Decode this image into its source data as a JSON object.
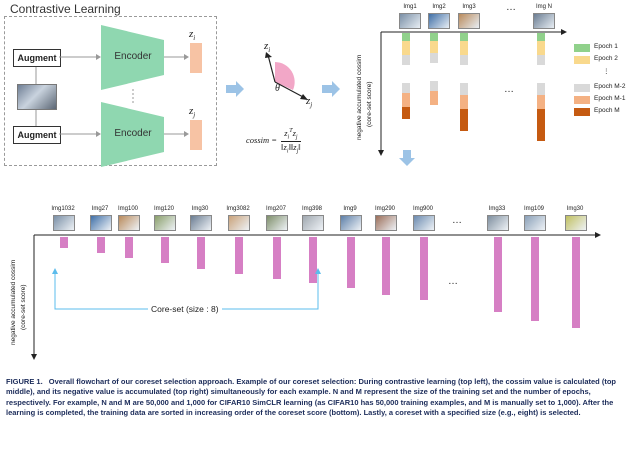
{
  "figure_title": "Contrastive Learning",
  "augment_label": "Augment",
  "encoder_label": "Encoder",
  "z_i": "z",
  "z_i_sub": "i",
  "z_j": "z",
  "z_j_sub": "j",
  "theta": "θ",
  "cossim_label": "cossim =",
  "cossim_num": "z",
  "cossim_den": "‖z",
  "top_right": {
    "images": [
      "Img1",
      "Img2",
      "Img3",
      "…",
      "Img N"
    ],
    "axis_label": "negative accumulated cossim",
    "axis_sub": "(core-set score)",
    "legend": [
      {
        "label": "Epoch 1",
        "color": "#90d18b"
      },
      {
        "label": "Epoch 2",
        "color": "#f9d98d"
      },
      {
        "label": "⋮",
        "color": ""
      },
      {
        "label": "Epoch M-2",
        "color": "#d9d9d9"
      },
      {
        "label": "Epoch M-1",
        "color": "#f4b183"
      },
      {
        "label": "Epoch M",
        "color": "#c55a11"
      }
    ],
    "dots": "…"
  },
  "bottom": {
    "images": [
      "Img1032",
      "Img27",
      "Img100",
      "Img120",
      "Img30",
      "Img3082",
      "Img207",
      "Img398",
      "Img9",
      "Img290",
      "Img900",
      "…",
      "Img33",
      "Img109",
      "Img30"
    ],
    "bar_values": [
      0.06,
      0.09,
      0.12,
      0.15,
      0.18,
      0.21,
      0.24,
      0.26,
      0.29,
      0.33,
      0.36,
      null,
      0.43,
      0.48,
      0.52
    ],
    "axis_label": "negative accumulated cossim",
    "axis_sub": "(core-set score)",
    "coreset_label": "Core-set (size : 8)",
    "dots": "…",
    "bar_color": "#d67fc4"
  },
  "caption": {
    "fig": "FIGURE 1.",
    "text": "Overall flowchart of our coreset selection approach. Example of our coreset selection: During contrastive learning (top left), the cossim value is calculated (top middle), and its negative value is accumulated (top right) simultaneously for each example. N and M represent the size of the training set and the number of epochs, respectively. For example, N and M are 50,000 and 1,000 for CIFAR10 SimCLR learning (as CIFAR10 has 50,000 training examples, and M is manually set to 1,000). After the learning is completed, the training data are sorted in increasing order of the coreset score (bottom). Lastly, a coreset with a specified size (e.g., eight) is selected."
  },
  "colors": {
    "encoder": "#8fd7b0",
    "z_vector": "#f7c3a4",
    "arrow_blue": "#9cc3e6",
    "caption": "#1c2c5a"
  }
}
